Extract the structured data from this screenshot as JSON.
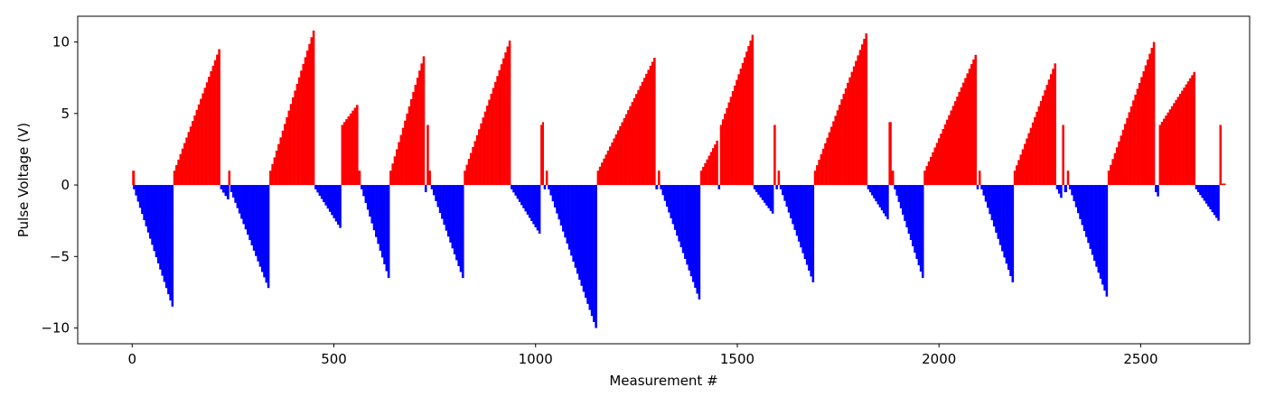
{
  "chart_data": {
    "type": "bar",
    "xlabel": "Measurement #",
    "ylabel": "Pulse Voltage (V)",
    "xlim": [
      -135,
      2770
    ],
    "ylim": [
      -11.1,
      11.8
    ],
    "xticks": [
      0,
      500,
      1000,
      1500,
      2000,
      2500
    ],
    "yticks": [
      -10,
      -5,
      0,
      5,
      10
    ],
    "colors": {
      "positive": "#ff0000",
      "negative": "#0000ff"
    },
    "series": [
      {
        "sign": "pos",
        "start": 0,
        "end": 6,
        "v0": 1.0,
        "v1": 1.0
      },
      {
        "sign": "neg",
        "start": 2,
        "end": 102,
        "v0": -0.3,
        "v1": -8.5
      },
      {
        "sign": "pos",
        "start": 102,
        "end": 218,
        "v0": 1.0,
        "v1": 9.5
      },
      {
        "sign": "neg",
        "start": 218,
        "end": 240,
        "v0": -0.3,
        "v1": -1.0
      },
      {
        "sign": "pos",
        "start": 238,
        "end": 243,
        "v0": 1.0,
        "v1": 1.0
      },
      {
        "sign": "neg",
        "start": 243,
        "end": 340,
        "v0": -0.5,
        "v1": -7.2
      },
      {
        "sign": "pos",
        "start": 340,
        "end": 452,
        "v0": 1.0,
        "v1": 10.8
      },
      {
        "sign": "neg",
        "start": 452,
        "end": 518,
        "v0": -0.3,
        "v1": -3.0
      },
      {
        "sign": "pos",
        "start": 518,
        "end": 560,
        "v0": 4.2,
        "v1": 5.6
      },
      {
        "sign": "pos",
        "start": 560,
        "end": 566,
        "v0": 1.0,
        "v1": 1.0
      },
      {
        "sign": "neg",
        "start": 566,
        "end": 638,
        "v0": -0.3,
        "v1": -6.5
      },
      {
        "sign": "pos",
        "start": 638,
        "end": 725,
        "v0": 1.0,
        "v1": 9.0
      },
      {
        "sign": "neg",
        "start": 725,
        "end": 730,
        "v0": -0.5,
        "v1": -0.5
      },
      {
        "sign": "pos",
        "start": 730,
        "end": 735,
        "v0": 4.2,
        "v1": 4.2
      },
      {
        "sign": "pos",
        "start": 735,
        "end": 740,
        "v0": 1.0,
        "v1": 1.0
      },
      {
        "sign": "neg",
        "start": 740,
        "end": 822,
        "v0": -0.3,
        "v1": -6.5
      },
      {
        "sign": "pos",
        "start": 822,
        "end": 938,
        "v0": 1.0,
        "v1": 10.1
      },
      {
        "sign": "neg",
        "start": 938,
        "end": 1012,
        "v0": -0.3,
        "v1": -3.4
      },
      {
        "sign": "pos",
        "start": 1012,
        "end": 1020,
        "v0": 4.2,
        "v1": 4.4
      },
      {
        "sign": "neg",
        "start": 1020,
        "end": 1025,
        "v0": -0.3,
        "v1": -0.3
      },
      {
        "sign": "pos",
        "start": 1025,
        "end": 1030,
        "v0": 1.0,
        "v1": 1.0
      },
      {
        "sign": "neg",
        "start": 1030,
        "end": 1152,
        "v0": -0.3,
        "v1": -10.0
      },
      {
        "sign": "pos",
        "start": 1152,
        "end": 1297,
        "v0": 1.0,
        "v1": 8.9
      },
      {
        "sign": "neg",
        "start": 1297,
        "end": 1303,
        "v0": -0.3,
        "v1": -0.3
      },
      {
        "sign": "pos",
        "start": 1303,
        "end": 1308,
        "v0": 1.0,
        "v1": 1.0
      },
      {
        "sign": "neg",
        "start": 1308,
        "end": 1408,
        "v0": -0.3,
        "v1": -8.0
      },
      {
        "sign": "pos",
        "start": 1408,
        "end": 1452,
        "v0": 1.0,
        "v1": 3.1
      },
      {
        "sign": "neg",
        "start": 1452,
        "end": 1457,
        "v0": -0.3,
        "v1": -0.3
      },
      {
        "sign": "pos",
        "start": 1457,
        "end": 1540,
        "v0": 4.2,
        "v1": 10.5
      },
      {
        "sign": "neg",
        "start": 1540,
        "end": 1590,
        "v0": -0.3,
        "v1": -2.0
      },
      {
        "sign": "pos",
        "start": 1590,
        "end": 1595,
        "v0": 4.2,
        "v1": 4.2
      },
      {
        "sign": "neg",
        "start": 1595,
        "end": 1600,
        "v0": -0.3,
        "v1": -0.3
      },
      {
        "sign": "pos",
        "start": 1600,
        "end": 1605,
        "v0": 1.0,
        "v1": 1.0
      },
      {
        "sign": "neg",
        "start": 1605,
        "end": 1690,
        "v0": -0.3,
        "v1": -6.8
      },
      {
        "sign": "pos",
        "start": 1690,
        "end": 1822,
        "v0": 1.0,
        "v1": 10.6
      },
      {
        "sign": "neg",
        "start": 1822,
        "end": 1875,
        "v0": -0.3,
        "v1": -2.4
      },
      {
        "sign": "pos",
        "start": 1875,
        "end": 1882,
        "v0": 4.2,
        "v1": 4.4
      },
      {
        "sign": "pos",
        "start": 1882,
        "end": 1888,
        "v0": 1.0,
        "v1": 1.0
      },
      {
        "sign": "neg",
        "start": 1888,
        "end": 1962,
        "v0": -0.3,
        "v1": -6.5
      },
      {
        "sign": "pos",
        "start": 1962,
        "end": 2093,
        "v0": 1.0,
        "v1": 9.1
      },
      {
        "sign": "neg",
        "start": 2093,
        "end": 2098,
        "v0": -0.3,
        "v1": -0.3
      },
      {
        "sign": "pos",
        "start": 2098,
        "end": 2103,
        "v0": 1.0,
        "v1": 1.0
      },
      {
        "sign": "neg",
        "start": 2103,
        "end": 2185,
        "v0": -0.3,
        "v1": -6.8
      },
      {
        "sign": "pos",
        "start": 2185,
        "end": 2290,
        "v0": 1.0,
        "v1": 8.5
      },
      {
        "sign": "neg",
        "start": 2290,
        "end": 2305,
        "v0": -0.3,
        "v1": -0.9
      },
      {
        "sign": "pos",
        "start": 2305,
        "end": 2310,
        "v0": 4.2,
        "v1": 4.2
      },
      {
        "sign": "neg",
        "start": 2310,
        "end": 2317,
        "v0": -0.3,
        "v1": -0.5
      },
      {
        "sign": "pos",
        "start": 2317,
        "end": 2322,
        "v0": 1.0,
        "v1": 1.0
      },
      {
        "sign": "neg",
        "start": 2322,
        "end": 2418,
        "v0": -0.3,
        "v1": -7.8
      },
      {
        "sign": "pos",
        "start": 2418,
        "end": 2535,
        "v0": 1.0,
        "v1": 10.0
      },
      {
        "sign": "neg",
        "start": 2535,
        "end": 2545,
        "v0": -0.5,
        "v1": -0.8
      },
      {
        "sign": "pos",
        "start": 2545,
        "end": 2635,
        "v0": 4.2,
        "v1": 7.9
      },
      {
        "sign": "neg",
        "start": 2635,
        "end": 2695,
        "v0": -0.3,
        "v1": -2.5
      },
      {
        "sign": "pos",
        "start": 2695,
        "end": 2700,
        "v0": 4.2,
        "v1": 4.2
      },
      {
        "sign": "pos",
        "start": 2700,
        "end": 2710,
        "v0": 0.1,
        "v1": 0.1
      }
    ]
  }
}
